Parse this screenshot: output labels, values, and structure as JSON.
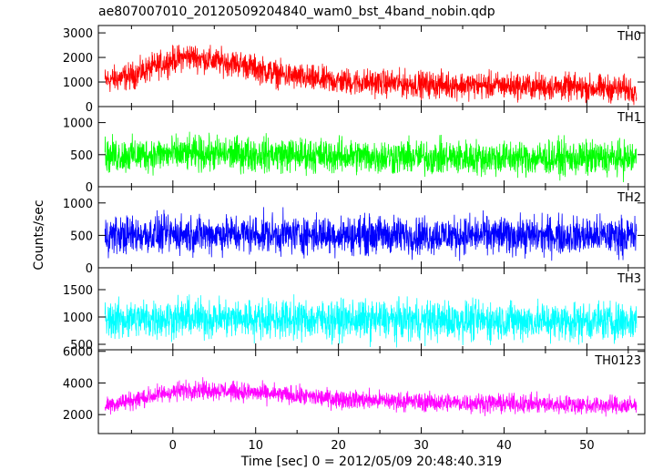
{
  "chart_data": {
    "type": "line",
    "title": "ae807007010_20120509204840_wam0_bst_4band_nobin.qdp",
    "xlabel": "Time [sec] 0 = 2012/05/09 20:48:40.319",
    "ylabel": "Counts/sec",
    "xlim": [
      -9,
      57
    ],
    "x_ticks": [
      "0",
      "10",
      "20",
      "30",
      "40",
      "50"
    ],
    "x_tick_values": [
      0,
      10,
      20,
      30,
      40,
      50
    ],
    "grid": false,
    "panels": [
      {
        "name": "TH0",
        "color": "#ff0000",
        "ylim": [
          0,
          3300
        ],
        "y_ticks": [
          "0",
          "1000",
          "2000",
          "3000"
        ],
        "y_tick_values": [
          0,
          1000,
          2000,
          3000
        ],
        "profile": [
          [
            -8.2,
            1050
          ],
          [
            -5,
            1250
          ],
          [
            -2,
            1650
          ],
          [
            0,
            1900
          ],
          [
            2,
            2050
          ],
          [
            5,
            1850
          ],
          [
            8,
            1750
          ],
          [
            10,
            1550
          ],
          [
            13,
            1300
          ],
          [
            17,
            1100
          ],
          [
            22,
            1000
          ],
          [
            30,
            900
          ],
          [
            40,
            850
          ],
          [
            48,
            780
          ],
          [
            56,
            700
          ]
        ],
        "scatter": 500
      },
      {
        "name": "TH1",
        "color": "#00ff00",
        "ylim": [
          0,
          1250
        ],
        "y_ticks": [
          "0",
          "500",
          "1000"
        ],
        "y_tick_values": [
          0,
          500,
          1000
        ],
        "profile": [
          [
            -8.2,
            480
          ],
          [
            0,
            510
          ],
          [
            10,
            510
          ],
          [
            20,
            480
          ],
          [
            30,
            460
          ],
          [
            40,
            450
          ],
          [
            56,
            440
          ]
        ],
        "scatter": 250
      },
      {
        "name": "TH2",
        "color": "#0000ff",
        "ylim": [
          0,
          1250
        ],
        "y_ticks": [
          "0",
          "500",
          "1000"
        ],
        "y_tick_values": [
          0,
          500,
          1000
        ],
        "profile": [
          [
            -8.2,
            500
          ],
          [
            0,
            520
          ],
          [
            10,
            520
          ],
          [
            20,
            510
          ],
          [
            30,
            500
          ],
          [
            40,
            500
          ],
          [
            56,
            490
          ]
        ],
        "scatter": 270
      },
      {
        "name": "TH3",
        "color": "#00ffff",
        "ylim": [
          400,
          1900
        ],
        "y_ticks": [
          "500",
          "1000",
          "1500"
        ],
        "y_tick_values": [
          500,
          1000,
          1500
        ],
        "profile": [
          [
            -8.2,
            950
          ],
          [
            0,
            980
          ],
          [
            10,
            970
          ],
          [
            20,
            950
          ],
          [
            30,
            940
          ],
          [
            40,
            930
          ],
          [
            56,
            920
          ]
        ],
        "scatter": 330
      },
      {
        "name": "TH0123",
        "color": "#ff00ff",
        "ylim": [
          800,
          6100
        ],
        "y_ticks": [
          "2000",
          "4000",
          "6000"
        ],
        "y_tick_values": [
          2000,
          4000,
          6000
        ],
        "profile": [
          [
            -8.2,
            2600
          ],
          [
            -5,
            2900
          ],
          [
            -1,
            3350
          ],
          [
            2,
            3600
          ],
          [
            5,
            3550
          ],
          [
            8,
            3450
          ],
          [
            12,
            3300
          ],
          [
            17,
            3100
          ],
          [
            22,
            2950
          ],
          [
            30,
            2800
          ],
          [
            40,
            2700
          ],
          [
            50,
            2600
          ],
          [
            56,
            2550
          ]
        ],
        "scatter": 550
      }
    ]
  }
}
